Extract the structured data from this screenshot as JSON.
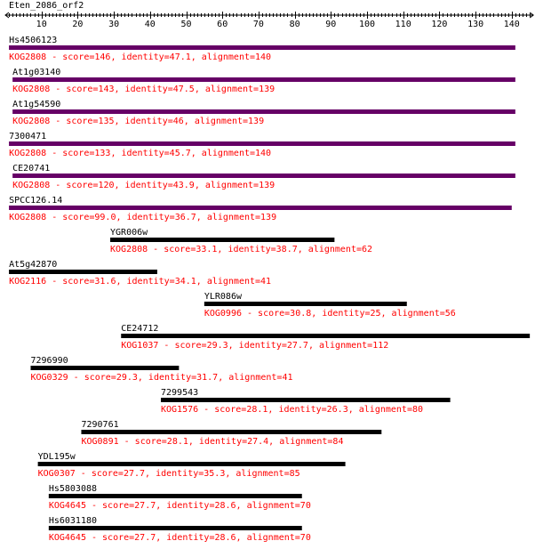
{
  "query": {
    "name": "Eten_2086_orf2"
  },
  "axis": {
    "min": 0,
    "max": 145,
    "ticks": [
      {
        "value": 10,
        "label": "10"
      },
      {
        "value": 20,
        "label": "20"
      },
      {
        "value": 30,
        "label": "30"
      },
      {
        "value": 40,
        "label": "40"
      },
      {
        "value": 50,
        "label": "50"
      },
      {
        "value": 60,
        "label": "60"
      },
      {
        "value": 70,
        "label": "70"
      },
      {
        "value": 80,
        "label": "80"
      },
      {
        "value": 90,
        "label": "90"
      },
      {
        "value": 100,
        "label": "100"
      },
      {
        "value": 110,
        "label": "110"
      },
      {
        "value": 120,
        "label": "120"
      },
      {
        "value": 130,
        "label": "130"
      },
      {
        "value": 140,
        "label": "140"
      }
    ]
  },
  "colors": {
    "kog2808_bar": "#660066",
    "bar": "#000000",
    "detail_text": "#ff0000",
    "label_text": "#000000"
  },
  "hits": [
    {
      "name": "Hs4506123",
      "start": 1,
      "end": 141,
      "kog": "KOG2808",
      "detail": "KOG2808 - score=146, identity=47.1, alignment=140"
    },
    {
      "name": "At1g03140",
      "start": 2,
      "end": 141,
      "kog": "KOG2808",
      "detail": "KOG2808 - score=143, identity=47.5, alignment=139"
    },
    {
      "name": "At1g54590",
      "start": 2,
      "end": 141,
      "kog": "KOG2808",
      "detail": "KOG2808 - score=135, identity=46, alignment=139"
    },
    {
      "name": "7300471",
      "start": 1,
      "end": 141,
      "kog": "KOG2808",
      "detail": "KOG2808 - score=133, identity=45.7, alignment=140"
    },
    {
      "name": "CE20741",
      "start": 2,
      "end": 141,
      "kog": "KOG2808",
      "detail": "KOG2808 - score=120, identity=43.9, alignment=139"
    },
    {
      "name": "SPCC126.14",
      "start": 1,
      "end": 140,
      "kog": "KOG2808",
      "detail": "KOG2808 - score=99.0, identity=36.7, alignment=139"
    },
    {
      "name": "YGR006w",
      "start": 29,
      "end": 91,
      "kog": "KOG2808",
      "detail": "KOG2808 - score=33.1, identity=38.7, alignment=62"
    },
    {
      "name": "At5g42870",
      "start": 1,
      "end": 42,
      "kog": "KOG2116",
      "detail": "KOG2116 - score=31.6, identity=34.1, alignment=41"
    },
    {
      "name": "YLR086w",
      "start": 55,
      "end": 111,
      "kog": "KOG0996",
      "detail": "KOG0996 - score=30.8, identity=25, alignment=56"
    },
    {
      "name": "CE24712",
      "start": 32,
      "end": 145,
      "kog": "KOG1037",
      "detail": "KOG1037 - score=29.3, identity=27.7, alignment=112"
    },
    {
      "name": "7296990",
      "start": 7,
      "end": 48,
      "kog": "KOG0329",
      "detail": "KOG0329 - score=29.3, identity=31.7, alignment=41"
    },
    {
      "name": "7299543",
      "start": 43,
      "end": 123,
      "kog": "KOG1576",
      "detail": "KOG1576 - score=28.1, identity=26.3, alignment=80"
    },
    {
      "name": "7290761",
      "start": 21,
      "end": 104,
      "kog": "KOG0891",
      "detail": "KOG0891 - score=28.1, identity=27.4, alignment=84"
    },
    {
      "name": "YDL195w",
      "start": 9,
      "end": 94,
      "kog": "KOG0307",
      "detail": "KOG0307 - score=27.7, identity=35.3, alignment=85"
    },
    {
      "name": "Hs5803088",
      "start": 12,
      "end": 82,
      "kog": "KOG4645",
      "detail": "KOG4645 - score=27.7, identity=28.6, alignment=70"
    },
    {
      "name": "Hs6031180",
      "start": 12,
      "end": 82,
      "kog": "KOG4645",
      "detail": "KOG4645 - score=27.7, identity=28.6, alignment=70"
    }
  ]
}
